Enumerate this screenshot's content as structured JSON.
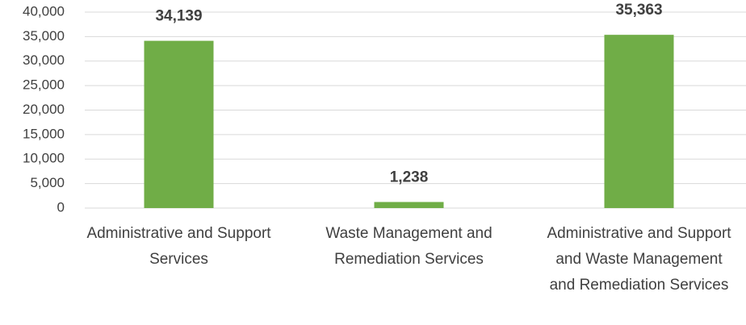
{
  "chart_data": {
    "type": "bar",
    "categories": [
      "Administrative and Support Services",
      "Waste Management and Remediation Services",
      "Administrative and Support and Waste Management and Remediation Services"
    ],
    "values": [
      34139,
      1238,
      35363
    ],
    "value_labels": [
      "34,139",
      "1,238",
      "35,363"
    ],
    "color": "#70ad47",
    "ylim": [
      0,
      40000
    ],
    "yticks": [
      0,
      {
        "value": 5000,
        "label": "5,000"
      },
      {
        "value": 10000,
        "label": "10,000"
      },
      {
        "value": 15000,
        "label": "15,000"
      },
      {
        "value": 20000,
        "label": "20,000"
      },
      {
        "value": 25000,
        "label": "25,000"
      },
      {
        "value": 30000,
        "label": "30,000"
      },
      {
        "value": 35000,
        "label": "35,000"
      },
      {
        "value": 40000,
        "label": "40,000"
      }
    ],
    "grid": true
  }
}
